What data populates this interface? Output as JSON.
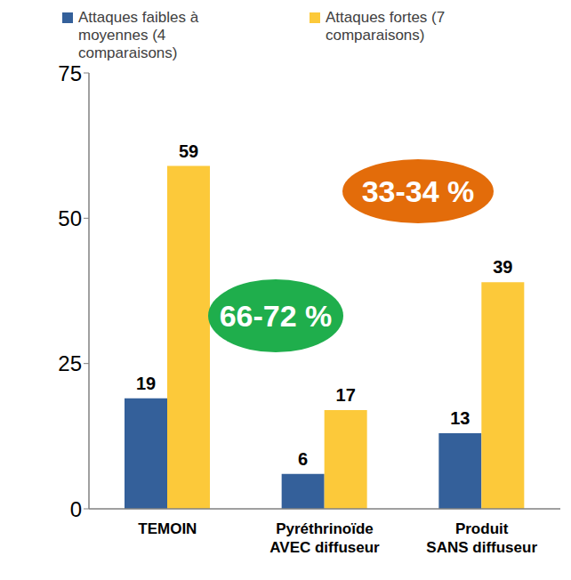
{
  "chart_data": {
    "type": "bar",
    "categories": [
      "TEMOIN",
      "Pyréthrinoïde AVEC diffuseur",
      "Produit SANS diffuseur"
    ],
    "series": [
      {
        "name": "Attaques faibles à moyennes (4 comparaisons)",
        "color": "#34609a",
        "values": [
          19,
          6,
          13
        ]
      },
      {
        "name": "Attaques fortes (7 comparaisons)",
        "color": "#fcc93a",
        "values": [
          59,
          17,
          39
        ]
      }
    ],
    "ylim": [
      0,
      75
    ],
    "yticks": [
      0,
      25,
      50,
      75
    ],
    "grid": false,
    "data_labels": true,
    "legend": "top",
    "annotations": [
      {
        "text": "66-72 %",
        "color": "#1fae4c"
      },
      {
        "text": "33-34 %",
        "color": "#e36c0a"
      }
    ]
  }
}
